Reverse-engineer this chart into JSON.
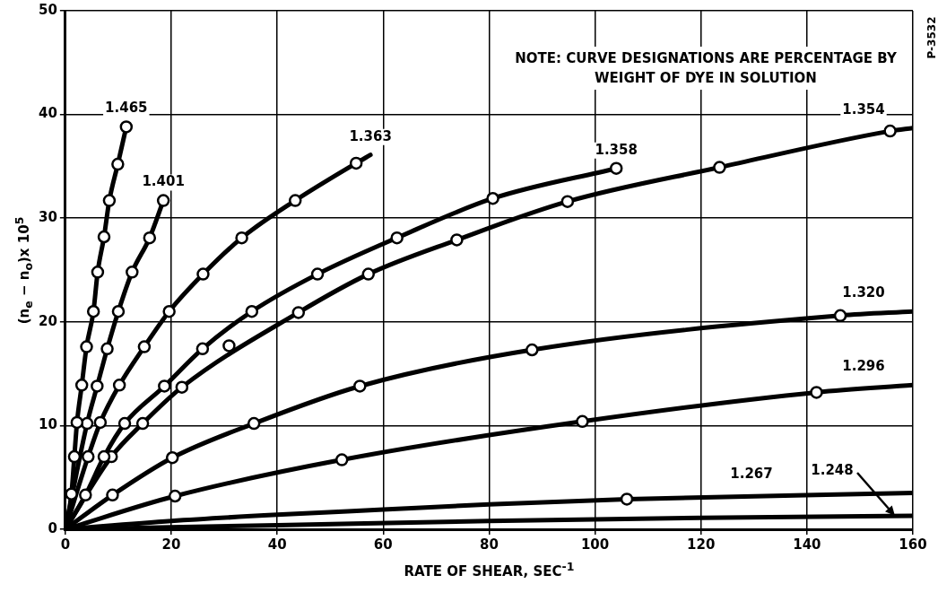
{
  "chart_data": {
    "type": "line",
    "xlabel": "RATE OF SHEAR, SEC$^{-1}$",
    "ylabel": "(n$_{e}$ − n$_{o}$)x 10$^{5}$",
    "xlim": [
      0,
      160
    ],
    "xticks": [
      0,
      20,
      40,
      60,
      80,
      100,
      120,
      140,
      160
    ],
    "ylim": [
      0,
      50
    ],
    "yticks": [
      0,
      10,
      20,
      30,
      40,
      50
    ],
    "grid": true,
    "legend": false,
    "line_style": "solid",
    "series": [
      {
        "name": "1.465",
        "marker": "none",
        "color": "#000000",
        "x": [
          0,
          1.15,
          1.7,
          2.2,
          3.1,
          4.0,
          5.3,
          6.1,
          7.3,
          8.3,
          9.9,
          11.5
        ],
        "values": [
          0,
          3.4,
          7.0,
          10.3,
          13.9,
          17.6,
          21.0,
          24.8,
          28.2,
          31.7,
          35.2,
          38.8
        ]
      },
      {
        "type": "scatter",
        "marker": "circle",
        "color": "#000000",
        "x": [
          1.15,
          1.7,
          2.2,
          3.1,
          4.0,
          5.3,
          6.1,
          7.3,
          8.3,
          9.9,
          11.5
        ],
        "values": [
          3.4,
          7.0,
          10.3,
          13.9,
          17.6,
          21.0,
          24.8,
          28.2,
          31.7,
          35.2,
          38.8
        ]
      },
      {
        "name": "1.401",
        "marker": "none",
        "color": "#000000",
        "x": [
          0,
          4.1,
          6.0,
          7.9,
          10.0,
          12.6,
          15.9,
          18.5
        ],
        "values": [
          0,
          10.2,
          13.8,
          17.4,
          21.0,
          24.8,
          28.1,
          31.7
        ]
      },
      {
        "type": "scatter",
        "marker": "circle",
        "color": "#000000",
        "x": [
          4.1,
          6.0,
          7.9,
          10.0,
          12.6,
          15.9,
          18.5
        ],
        "values": [
          10.2,
          13.8,
          17.4,
          21.0,
          24.8,
          28.1,
          31.7
        ]
      },
      {
        "name": "1.363",
        "marker": "none",
        "color": "#000000",
        "x": [
          0,
          4.3,
          6.6,
          10.2,
          14.9,
          19.6,
          26.0,
          33.3,
          43.4,
          54.9,
          57.6
        ],
        "values": [
          0,
          7.0,
          10.3,
          13.9,
          17.6,
          21.0,
          24.6,
          28.1,
          31.7,
          35.3,
          36.1
        ]
      },
      {
        "type": "scatter",
        "marker": "circle",
        "color": "#000000",
        "x": [
          4.3,
          6.6,
          10.2,
          14.9,
          19.6,
          26.0,
          33.3,
          43.4,
          54.9
        ],
        "values": [
          7.0,
          10.3,
          13.9,
          17.6,
          21.0,
          24.6,
          28.1,
          31.7,
          35.3
        ]
      },
      {
        "name": "1.358",
        "marker": "none",
        "color": "#000000",
        "x": [
          0,
          3.8,
          7.3,
          11.2,
          18.7,
          25.9,
          35.2,
          47.6,
          62.6,
          80.7,
          104.0
        ],
        "values": [
          0,
          3.3,
          7.0,
          10.2,
          13.8,
          17.4,
          21.0,
          24.6,
          28.1,
          31.9,
          34.8
        ]
      },
      {
        "type": "scatter",
        "marker": "circle",
        "color": "#000000",
        "x": [
          3.8,
          7.3,
          11.2,
          18.7,
          25.9,
          35.2,
          47.6,
          62.6,
          80.7,
          104.0
        ],
        "values": [
          3.3,
          7.0,
          10.2,
          13.8,
          17.4,
          21.0,
          24.6,
          28.1,
          31.9,
          34.8
        ]
      },
      {
        "name": "1.354",
        "marker": "none",
        "color": "#000000",
        "x": [
          0,
          8.7,
          14.6,
          22.0,
          44.0,
          57.2,
          73.9,
          94.8,
          123.5,
          155.7,
          160
        ],
        "values": [
          0,
          7.0,
          10.2,
          13.7,
          20.9,
          24.6,
          27.9,
          31.6,
          34.9,
          38.4,
          38.7
        ]
      },
      {
        "type": "scatter",
        "marker": "circle",
        "color": "#000000",
        "x": [
          8.7,
          14.6,
          22.0,
          30.9,
          44.0,
          57.2,
          73.9,
          94.8,
          123.5,
          155.7
        ],
        "values": [
          7.0,
          10.2,
          13.7,
          17.7,
          20.9,
          24.6,
          27.9,
          31.6,
          34.9,
          38.4
        ]
      },
      {
        "name": "1.320",
        "marker": "none",
        "color": "#000000",
        "x": [
          0,
          8.9,
          20.2,
          35.6,
          55.6,
          88.1,
          146.3,
          160
        ],
        "values": [
          0,
          3.3,
          6.9,
          10.2,
          13.8,
          17.3,
          20.6,
          21.0
        ]
      },
      {
        "type": "scatter",
        "marker": "circle",
        "color": "#000000",
        "x": [
          8.9,
          20.2,
          35.6,
          55.6,
          88.1,
          146.3
        ],
        "values": [
          3.3,
          6.9,
          10.2,
          13.8,
          17.3,
          20.6
        ]
      },
      {
        "name": "1.296",
        "marker": "none",
        "color": "#000000",
        "x": [
          0,
          20.7,
          52.2,
          97.6,
          141.8,
          160
        ],
        "values": [
          0,
          3.2,
          6.7,
          10.4,
          13.2,
          13.9
        ]
      },
      {
        "type": "scatter",
        "marker": "circle",
        "color": "#000000",
        "x": [
          20.7,
          52.2,
          97.6,
          141.8
        ],
        "values": [
          3.2,
          6.7,
          10.4,
          13.2
        ]
      },
      {
        "name": "1.267",
        "marker": "none",
        "color": "#000000",
        "x": [
          0,
          20,
          40,
          60,
          80,
          106.0,
          160
        ],
        "values": [
          0,
          0.8,
          1.4,
          1.9,
          2.4,
          2.9,
          3.5
        ]
      },
      {
        "type": "scatter",
        "marker": "circle",
        "color": "#000000",
        "x": [
          106.0
        ],
        "values": [
          2.9
        ]
      },
      {
        "name": "1.248",
        "marker": "none",
        "color": "#000000",
        "x": [
          0,
          40,
          80,
          120,
          160
        ],
        "values": [
          0,
          0.4,
          0.8,
          1.1,
          1.3
        ]
      }
    ],
    "annotations": [
      "NOTE: CURVE DESIGNATIONS ARE PERCENTAGE BY WEIGHT OF DYE IN SOLUTION",
      "P-3532"
    ]
  }
}
